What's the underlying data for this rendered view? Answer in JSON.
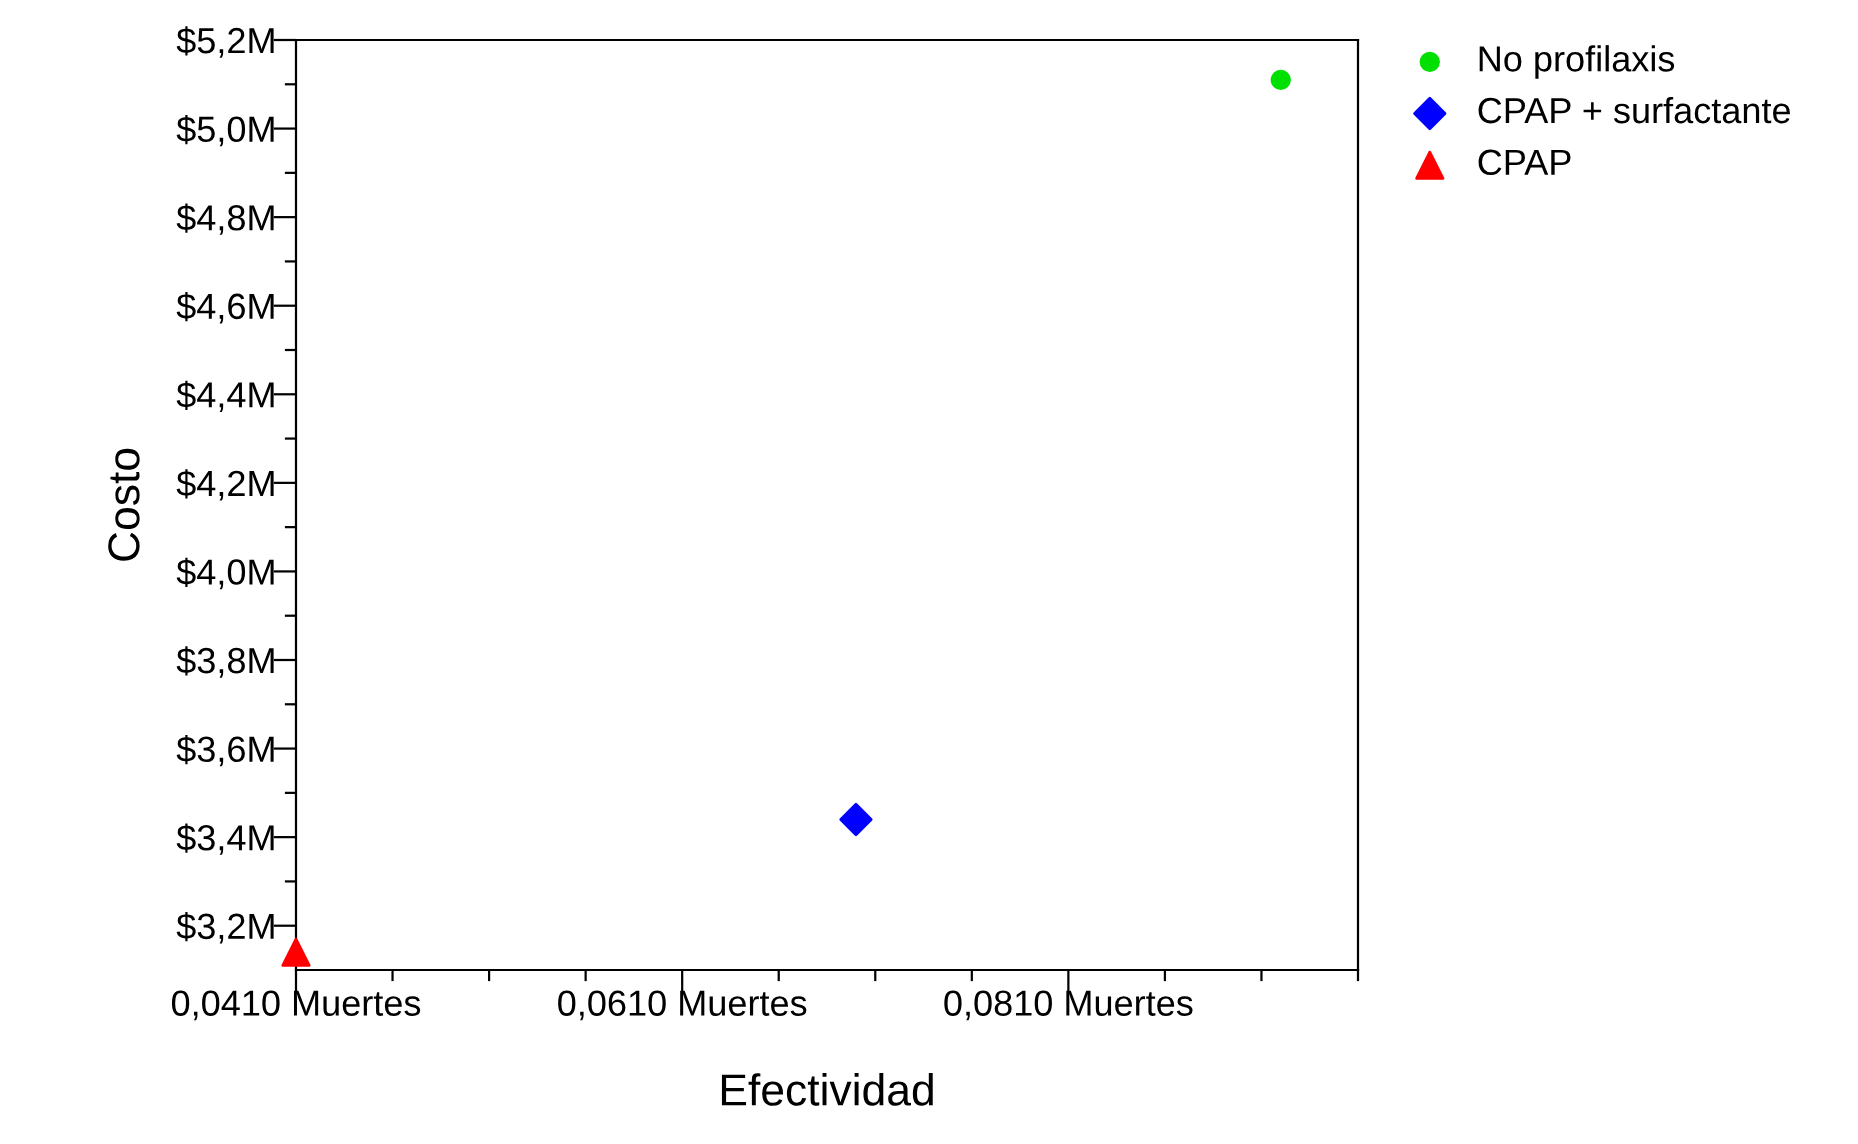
{
  "chart_data": {
    "type": "scatter",
    "xlabel": "Efectividad",
    "ylabel": "Costo",
    "legend": "top right",
    "series": [
      {
        "name": "No profilaxis",
        "color": "#00e000",
        "marker": "circle",
        "x": [
          0.092
        ],
        "values": [
          5.11
        ]
      },
      {
        "name": "CPAP + surfactante",
        "color": "#0000ff",
        "marker": "diamond",
        "x": [
          0.07
        ],
        "values": [
          3.44
        ]
      },
      {
        "name": "CPAP",
        "color": "#ff0000",
        "marker": "triangle",
        "x": [
          0.041
        ],
        "values": [
          3.14
        ]
      }
    ],
    "xlim": [
      0.041,
      0.096
    ],
    "ylim": [
      3.1,
      5.2
    ],
    "xticks": [
      {
        "value": 0.041,
        "label": "0,0410 Muertes"
      },
      {
        "value": 0.046,
        "label": null
      },
      {
        "value": 0.051,
        "label": null
      },
      {
        "value": 0.056,
        "label": null
      },
      {
        "value": 0.061,
        "label": "0,0610 Muertes"
      },
      {
        "value": 0.066,
        "label": null
      },
      {
        "value": 0.071,
        "label": null
      },
      {
        "value": 0.076,
        "label": null
      },
      {
        "value": 0.081,
        "label": "0,0810 Muertes"
      },
      {
        "value": 0.086,
        "label": null
      },
      {
        "value": 0.091,
        "label": null
      },
      {
        "value": 0.096,
        "label": null
      }
    ],
    "yticks": [
      {
        "value": 3.2,
        "label": "$3,2M"
      },
      {
        "value": 3.3,
        "label": null
      },
      {
        "value": 3.4,
        "label": "$3,4M"
      },
      {
        "value": 3.5,
        "label": null
      },
      {
        "value": 3.6,
        "label": "$3,6M"
      },
      {
        "value": 3.7,
        "label": null
      },
      {
        "value": 3.8,
        "label": "$3,8M"
      },
      {
        "value": 3.9,
        "label": null
      },
      {
        "value": 4.0,
        "label": "$4,0M"
      },
      {
        "value": 4.1,
        "label": null
      },
      {
        "value": 4.2,
        "label": "$4,2M"
      },
      {
        "value": 4.3,
        "label": null
      },
      {
        "value": 4.4,
        "label": "$4,4M"
      },
      {
        "value": 4.5,
        "label": null
      },
      {
        "value": 4.6,
        "label": "$4,6M"
      },
      {
        "value": 4.7,
        "label": null
      },
      {
        "value": 4.8,
        "label": "$4,8M"
      },
      {
        "value": 4.9,
        "label": null
      },
      {
        "value": 5.0,
        "label": "$5,0M"
      },
      {
        "value": 5.1,
        "label": null
      },
      {
        "value": 5.2,
        "label": "$5,2M"
      }
    ],
    "grid": false
  }
}
